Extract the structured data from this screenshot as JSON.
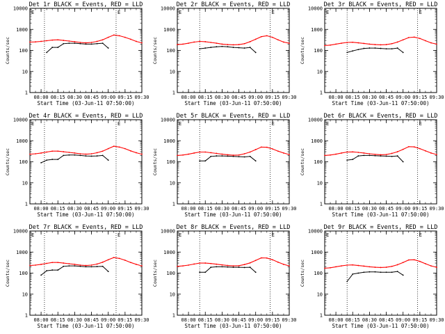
{
  "figure": {
    "xlabel_template": "Start Time (03-Jun-11 07:50:00)",
    "ylabel": "Counts/sec",
    "x_tick_labels": [
      "08:00",
      "08:15",
      "08:30",
      "08:45",
      "09:00",
      "09:15",
      "09:30"
    ],
    "y_tick_labels": [
      "1",
      "10",
      "100",
      "1000",
      "10000"
    ],
    "series_colors": {
      "events": "#000000",
      "lld": "#ff0000"
    },
    "legend_marker": "E"
  },
  "chart_data": [
    {
      "type": "line",
      "title": "Det 1r BLACK = Events, RED = LLD",
      "xlabel": "Start Time (03-Jun-11 07:50:00)",
      "ylabel": "Counts/sec",
      "xlim": [
        "07:50",
        "09:30"
      ],
      "ylim": [
        1,
        10000
      ],
      "log_y": true,
      "vertical_dotted_lines": [
        "08:03",
        "09:07"
      ],
      "x": [
        "07:50",
        "07:55",
        "08:00",
        "08:05",
        "08:10",
        "08:15",
        "08:20",
        "08:25",
        "08:30",
        "08:35",
        "08:40",
        "08:45",
        "08:50",
        "08:55",
        "09:00",
        "09:05",
        "09:10",
        "09:15",
        "09:20",
        "09:25",
        "09:30"
      ],
      "series": [
        {
          "name": "Events",
          "color": "#000000",
          "values": [
            null,
            null,
            null,
            80,
            140,
            140,
            210,
            220,
            220,
            210,
            200,
            200,
            210,
            220,
            130,
            null,
            null,
            null,
            null,
            null,
            null
          ]
        },
        {
          "name": "LLD",
          "color": "#ff0000",
          "values": [
            250,
            255,
            270,
            290,
            310,
            320,
            300,
            280,
            260,
            240,
            230,
            240,
            270,
            320,
            420,
            540,
            500,
            420,
            340,
            270,
            230
          ]
        }
      ]
    },
    {
      "type": "line",
      "title": "Det 2r BLACK = Events, RED = LLD",
      "xlabel": "Start Time (03-Jun-11 07:50:00)",
      "ylabel": "Counts/sec",
      "xlim": [
        "07:50",
        "09:30"
      ],
      "ylim": [
        1,
        10000
      ],
      "log_y": true,
      "vertical_dotted_lines": [
        "08:10",
        "09:13"
      ],
      "x": [
        "07:50",
        "07:55",
        "08:00",
        "08:05",
        "08:10",
        "08:15",
        "08:20",
        "08:25",
        "08:30",
        "08:35",
        "08:40",
        "08:45",
        "08:50",
        "08:55",
        "09:00",
        "09:05",
        "09:10",
        "09:15",
        "09:20",
        "09:25",
        "09:30"
      ],
      "series": [
        {
          "name": "Events",
          "color": "#000000",
          "values": [
            null,
            null,
            null,
            null,
            120,
            130,
            140,
            150,
            155,
            150,
            140,
            135,
            130,
            140,
            80,
            null,
            null,
            null,
            null,
            null,
            null
          ]
        },
        {
          "name": "LLD",
          "color": "#ff0000",
          "values": [
            190,
            200,
            220,
            250,
            270,
            260,
            240,
            220,
            200,
            190,
            185,
            190,
            210,
            260,
            340,
            450,
            500,
            420,
            320,
            250,
            220
          ]
        }
      ]
    },
    {
      "type": "line",
      "title": "Det 3r BLACK = Events, RED = LLD",
      "xlabel": "Start Time (03-Jun-11 07:50:00)",
      "ylabel": "Counts/sec",
      "xlim": [
        "07:50",
        "09:30"
      ],
      "ylim": [
        1,
        10000
      ],
      "log_y": true,
      "vertical_dotted_lines": [
        "08:10",
        "09:13"
      ],
      "x": [
        "07:50",
        "07:55",
        "08:00",
        "08:05",
        "08:10",
        "08:15",
        "08:20",
        "08:25",
        "08:30",
        "08:35",
        "08:40",
        "08:45",
        "08:50",
        "08:55",
        "09:00",
        "09:05",
        "09:10",
        "09:15",
        "09:20",
        "09:25",
        "09:30"
      ],
      "series": [
        {
          "name": "Events",
          "color": "#000000",
          "values": [
            null,
            null,
            null,
            null,
            80,
            95,
            110,
            125,
            130,
            130,
            125,
            120,
            120,
            130,
            80,
            null,
            null,
            null,
            null,
            null,
            null
          ]
        },
        {
          "name": "LLD",
          "color": "#ff0000",
          "values": [
            170,
            180,
            200,
            220,
            240,
            245,
            230,
            215,
            200,
            190,
            185,
            190,
            210,
            250,
            320,
            410,
            430,
            370,
            290,
            230,
            200
          ]
        }
      ]
    },
    {
      "type": "line",
      "title": "Det 4r BLACK = Events, RED = LLD",
      "xlabel": "Start Time (03-Jun-11 07:50:00)",
      "ylabel": "Counts/sec",
      "xlim": [
        "07:50",
        "09:30"
      ],
      "ylim": [
        1,
        10000
      ],
      "log_y": true,
      "vertical_dotted_lines": [
        "08:03",
        "09:07"
      ],
      "x": [
        "07:50",
        "07:55",
        "08:00",
        "08:05",
        "08:10",
        "08:15",
        "08:20",
        "08:25",
        "08:30",
        "08:35",
        "08:40",
        "08:45",
        "08:50",
        "08:55",
        "09:00",
        "09:05",
        "09:10",
        "09:15",
        "09:20",
        "09:25",
        "09:30"
      ],
      "series": [
        {
          "name": "Events",
          "color": "#000000",
          "values": [
            null,
            null,
            90,
            120,
            130,
            130,
            200,
            210,
            210,
            200,
            190,
            185,
            190,
            200,
            120,
            null,
            null,
            null,
            null,
            null,
            null
          ]
        },
        {
          "name": "LLD",
          "color": "#ff0000",
          "values": [
            230,
            240,
            260,
            290,
            320,
            320,
            300,
            280,
            260,
            240,
            230,
            240,
            270,
            320,
            420,
            550,
            500,
            420,
            330,
            270,
            230
          ]
        }
      ]
    },
    {
      "type": "line",
      "title": "Det 5r BLACK = Events, RED = LLD",
      "xlabel": "Start Time (03-Jun-11 07:50:00)",
      "ylabel": "Counts/sec",
      "xlim": [
        "07:50",
        "09:30"
      ],
      "ylim": [
        1,
        10000
      ],
      "log_y": true,
      "vertical_dotted_lines": [
        "08:10",
        "09:13"
      ],
      "x": [
        "07:50",
        "07:55",
        "08:00",
        "08:05",
        "08:10",
        "08:15",
        "08:20",
        "08:25",
        "08:30",
        "08:35",
        "08:40",
        "08:45",
        "08:50",
        "08:55",
        "09:00",
        "09:05",
        "09:10",
        "09:15",
        "09:20",
        "09:25",
        "09:30"
      ],
      "series": [
        {
          "name": "Events",
          "color": "#000000",
          "values": [
            null,
            null,
            null,
            null,
            110,
            110,
            180,
            190,
            190,
            185,
            180,
            175,
            170,
            180,
            110,
            null,
            null,
            null,
            null,
            null,
            null
          ]
        },
        {
          "name": "LLD",
          "color": "#ff0000",
          "values": [
            200,
            210,
            230,
            260,
            290,
            290,
            270,
            250,
            230,
            215,
            205,
            210,
            240,
            290,
            380,
            500,
            490,
            410,
            320,
            260,
            220
          ]
        }
      ]
    },
    {
      "type": "line",
      "title": "Det 6r BLACK = Events, RED = LLD",
      "xlabel": "Start Time (03-Jun-11 07:50:00)",
      "ylabel": "Counts/sec",
      "xlim": [
        "07:50",
        "09:30"
      ],
      "ylim": [
        1,
        10000
      ],
      "log_y": true,
      "vertical_dotted_lines": [
        "08:10",
        "09:13"
      ],
      "x": [
        "07:50",
        "07:55",
        "08:00",
        "08:05",
        "08:10",
        "08:15",
        "08:20",
        "08:25",
        "08:30",
        "08:35",
        "08:40",
        "08:45",
        "08:50",
        "08:55",
        "09:00",
        "09:05",
        "09:10",
        "09:15",
        "09:20",
        "09:25",
        "09:30"
      ],
      "series": [
        {
          "name": "Events",
          "color": "#000000",
          "values": [
            null,
            null,
            null,
            null,
            120,
            130,
            190,
            200,
            200,
            195,
            190,
            185,
            180,
            190,
            100,
            null,
            null,
            null,
            null,
            null,
            null
          ]
        },
        {
          "name": "LLD",
          "color": "#ff0000",
          "values": [
            200,
            210,
            230,
            260,
            290,
            295,
            280,
            260,
            240,
            225,
            215,
            220,
            250,
            300,
            390,
            520,
            510,
            420,
            330,
            260,
            220
          ]
        }
      ]
    },
    {
      "type": "line",
      "title": "Det 7r BLACK = Events, RED = LLD",
      "xlabel": "Start Time (03-Jun-11 07:50:00)",
      "ylabel": "Counts/sec",
      "xlim": [
        "07:50",
        "09:30"
      ],
      "ylim": [
        1,
        10000
      ],
      "log_y": true,
      "vertical_dotted_lines": [
        "08:03",
        "09:07"
      ],
      "x": [
        "07:50",
        "07:55",
        "08:00",
        "08:05",
        "08:10",
        "08:15",
        "08:20",
        "08:25",
        "08:30",
        "08:35",
        "08:40",
        "08:45",
        "08:50",
        "08:55",
        "09:00",
        "09:05",
        "09:10",
        "09:15",
        "09:20",
        "09:25",
        "09:30"
      ],
      "series": [
        {
          "name": "Events",
          "color": "#000000",
          "values": [
            null,
            null,
            80,
            130,
            140,
            140,
            210,
            220,
            220,
            210,
            200,
            200,
            205,
            210,
            120,
            null,
            null,
            null,
            null,
            null,
            null
          ]
        },
        {
          "name": "LLD",
          "color": "#ff0000",
          "values": [
            230,
            240,
            260,
            290,
            320,
            320,
            300,
            280,
            260,
            240,
            230,
            240,
            270,
            330,
            430,
            550,
            500,
            410,
            320,
            260,
            220
          ]
        }
      ]
    },
    {
      "type": "line",
      "title": "Det 8r BLACK = Events, RED = LLD",
      "xlabel": "Start Time (03-Jun-11 07:50:00)",
      "ylabel": "Counts/sec",
      "xlim": [
        "07:50",
        "09:30"
      ],
      "ylim": [
        1,
        10000
      ],
      "log_y": true,
      "vertical_dotted_lines": [
        "08:10",
        "09:13"
      ],
      "x": [
        "07:50",
        "07:55",
        "08:00",
        "08:05",
        "08:10",
        "08:15",
        "08:20",
        "08:25",
        "08:30",
        "08:35",
        "08:40",
        "08:45",
        "08:50",
        "08:55",
        "09:00",
        "09:05",
        "09:10",
        "09:15",
        "09:20",
        "09:25",
        "09:30"
      ],
      "series": [
        {
          "name": "Events",
          "color": "#000000",
          "values": [
            null,
            null,
            null,
            null,
            110,
            110,
            190,
            200,
            200,
            195,
            190,
            190,
            185,
            190,
            110,
            null,
            null,
            null,
            null,
            null,
            null
          ]
        },
        {
          "name": "LLD",
          "color": "#ff0000",
          "values": [
            210,
            220,
            240,
            270,
            300,
            300,
            285,
            265,
            245,
            230,
            220,
            225,
            255,
            305,
            400,
            530,
            520,
            430,
            330,
            260,
            220
          ]
        }
      ]
    },
    {
      "type": "line",
      "title": "Det 9r BLACK = Events, RED = LLD",
      "xlabel": "Start Time (03-Jun-11 07:50:00)",
      "ylabel": "Counts/sec",
      "xlim": [
        "07:50",
        "09:30"
      ],
      "ylim": [
        1,
        10000
      ],
      "log_y": true,
      "vertical_dotted_lines": [
        "08:10",
        "09:13"
      ],
      "x": [
        "07:50",
        "07:55",
        "08:00",
        "08:05",
        "08:10",
        "08:15",
        "08:20",
        "08:25",
        "08:30",
        "08:35",
        "08:40",
        "08:45",
        "08:50",
        "08:55",
        "09:00",
        "09:05",
        "09:10",
        "09:15",
        "09:20",
        "09:25",
        "09:30"
      ],
      "series": [
        {
          "name": "Events",
          "color": "#000000",
          "values": [
            null,
            null,
            null,
            null,
            40,
            90,
            100,
            110,
            115,
            115,
            110,
            110,
            110,
            120,
            80,
            null,
            null,
            null,
            null,
            null,
            null
          ]
        },
        {
          "name": "LLD",
          "color": "#ff0000",
          "values": [
            170,
            180,
            200,
            220,
            240,
            245,
            230,
            215,
            200,
            190,
            185,
            190,
            210,
            250,
            320,
            420,
            430,
            360,
            280,
            220,
            190
          ]
        }
      ]
    }
  ]
}
